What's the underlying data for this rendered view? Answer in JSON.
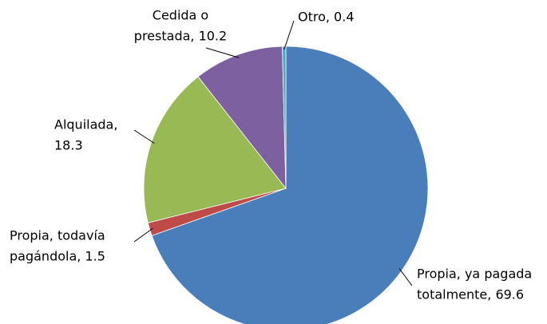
{
  "chart_data": {
    "type": "pie",
    "values": [
      69.6,
      1.5,
      18.3,
      10.2,
      0.4
    ],
    "value_labels": [
      [
        "Propia, ya pagada",
        "totalmente, 69.6"
      ],
      [
        "Propia, todavía",
        "pagándola, 1.5"
      ],
      [
        "Alquilada,",
        "18.3"
      ],
      [
        "Cedida o",
        "prestada, 10.2"
      ],
      [
        "Otro, 0.4"
      ]
    ],
    "colors": [
      "#4a7ebb",
      "#be4b48",
      "#98b954",
      "#7d60a0",
      "#46aac5"
    ]
  }
}
